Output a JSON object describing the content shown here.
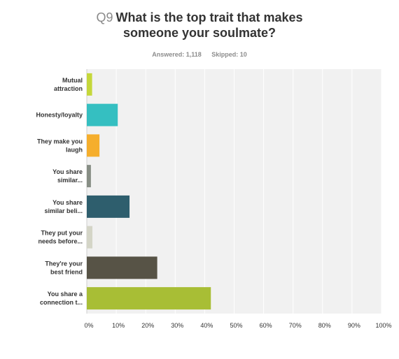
{
  "header": {
    "question_number": "Q9",
    "title_line1": "What is the top trait that makes",
    "title_line2": "someone your soulmate?",
    "answered": "Answered: 1,118",
    "skipped": "Skipped: 10"
  },
  "chart_data": {
    "type": "bar",
    "orientation": "horizontal",
    "categories": [
      [
        "Mutual",
        "attraction"
      ],
      [
        "Honesty/loyalty"
      ],
      [
        "They make you",
        "laugh"
      ],
      [
        "You share",
        "similar..."
      ],
      [
        "You share",
        "similar beli..."
      ],
      [
        "They put your",
        "needs before..."
      ],
      [
        "They're your",
        "best friend"
      ],
      [
        "You share a",
        "connection t..."
      ]
    ],
    "values": [
      1.8,
      10.5,
      4.3,
      1.4,
      14.5,
      1.9,
      23.9,
      42.1
    ],
    "colors": [
      "#c5d73a",
      "#35bfc1",
      "#f5ae2c",
      "#878e85",
      "#2e5e6d",
      "#d4d5c7",
      "#575346",
      "#a8be35"
    ],
    "xlim": [
      0,
      100
    ],
    "ticks": [
      "0%",
      "10%",
      "20%",
      "30%",
      "40%",
      "50%",
      "60%",
      "70%",
      "80%",
      "90%",
      "100%"
    ],
    "grid": true,
    "xlabel": "",
    "ylabel": ""
  }
}
